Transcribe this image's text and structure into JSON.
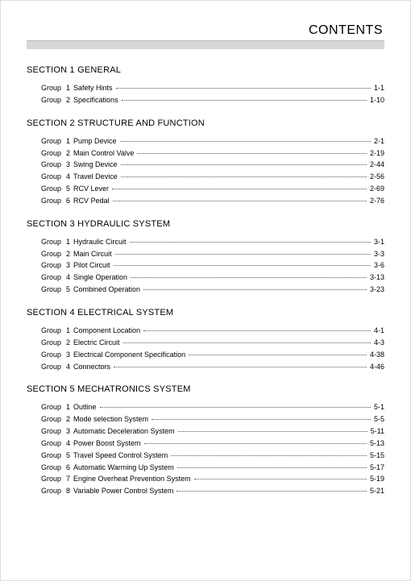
{
  "header": {
    "title": "CONTENTS"
  },
  "sections": [
    {
      "title": "SECTION 1  GENERAL",
      "groups": [
        {
          "num": "1",
          "name": "Safety Hints",
          "page": "1-1"
        },
        {
          "num": "2",
          "name": "Specifications",
          "page": "1-10"
        }
      ]
    },
    {
      "title": "SECTION 2  STRUCTURE AND FUNCTION",
      "groups": [
        {
          "num": "1",
          "name": "Pump Device",
          "page": "2-1"
        },
        {
          "num": "2",
          "name": "Main Control Valve",
          "page": "2-19"
        },
        {
          "num": "3",
          "name": "Swing Device",
          "page": "2-44"
        },
        {
          "num": "4",
          "name": "Travel Device",
          "page": "2-56"
        },
        {
          "num": "5",
          "name": "RCV Lever",
          "page": "2-69"
        },
        {
          "num": "6",
          "name": "RCV Pedal",
          "page": "2-76"
        }
      ]
    },
    {
      "title": "SECTION 3  HYDRAULIC SYSTEM",
      "groups": [
        {
          "num": "1",
          "name": "Hydraulic Circuit",
          "page": "3-1"
        },
        {
          "num": "2",
          "name": "Main Circuit",
          "page": "3-3"
        },
        {
          "num": "3",
          "name": "Pilot Circuit",
          "page": "3-6"
        },
        {
          "num": "4",
          "name": "Single Operation",
          "page": "3-13"
        },
        {
          "num": "5",
          "name": "Combined Operation",
          "page": "3-23"
        }
      ]
    },
    {
      "title": "SECTION 4  ELECTRICAL SYSTEM",
      "groups": [
        {
          "num": "1",
          "name": "Component Location",
          "page": "4-1"
        },
        {
          "num": "2",
          "name": "Electric Circuit",
          "page": "4-3"
        },
        {
          "num": "3",
          "name": "Electrical Component Specification",
          "page": "4-38"
        },
        {
          "num": "4",
          "name": "Connectors",
          "page": "4-46"
        }
      ]
    },
    {
      "title": "SECTION 5  MECHATRONICS SYSTEM",
      "groups": [
        {
          "num": "1",
          "name": "Outline",
          "page": "5-1"
        },
        {
          "num": "2",
          "name": "Mode selection System",
          "page": "5-5"
        },
        {
          "num": "3",
          "name": "Automatic Deceleration System",
          "page": "5-11"
        },
        {
          "num": "4",
          "name": "Power Boost System",
          "page": "5-13"
        },
        {
          "num": "5",
          "name": "Travel Speed Control System",
          "page": "5-15"
        },
        {
          "num": "6",
          "name": "Automatic Warming Up System",
          "page": "5-17"
        },
        {
          "num": "7",
          "name": "Engine Overheat Prevention System",
          "page": "5-19"
        },
        {
          "num": "8",
          "name": "Variable Power Control System",
          "page": "5-21"
        }
      ]
    }
  ],
  "labels": {
    "group_prefix": "Group"
  },
  "style": {
    "background_color": "#ffffff",
    "text_color": "#000000",
    "bar_color": "#d7d7d7",
    "bar_border": "#b9b9b9",
    "title_fontsize": 16,
    "section_title_fontsize": 11,
    "row_fontsize": 9
  }
}
